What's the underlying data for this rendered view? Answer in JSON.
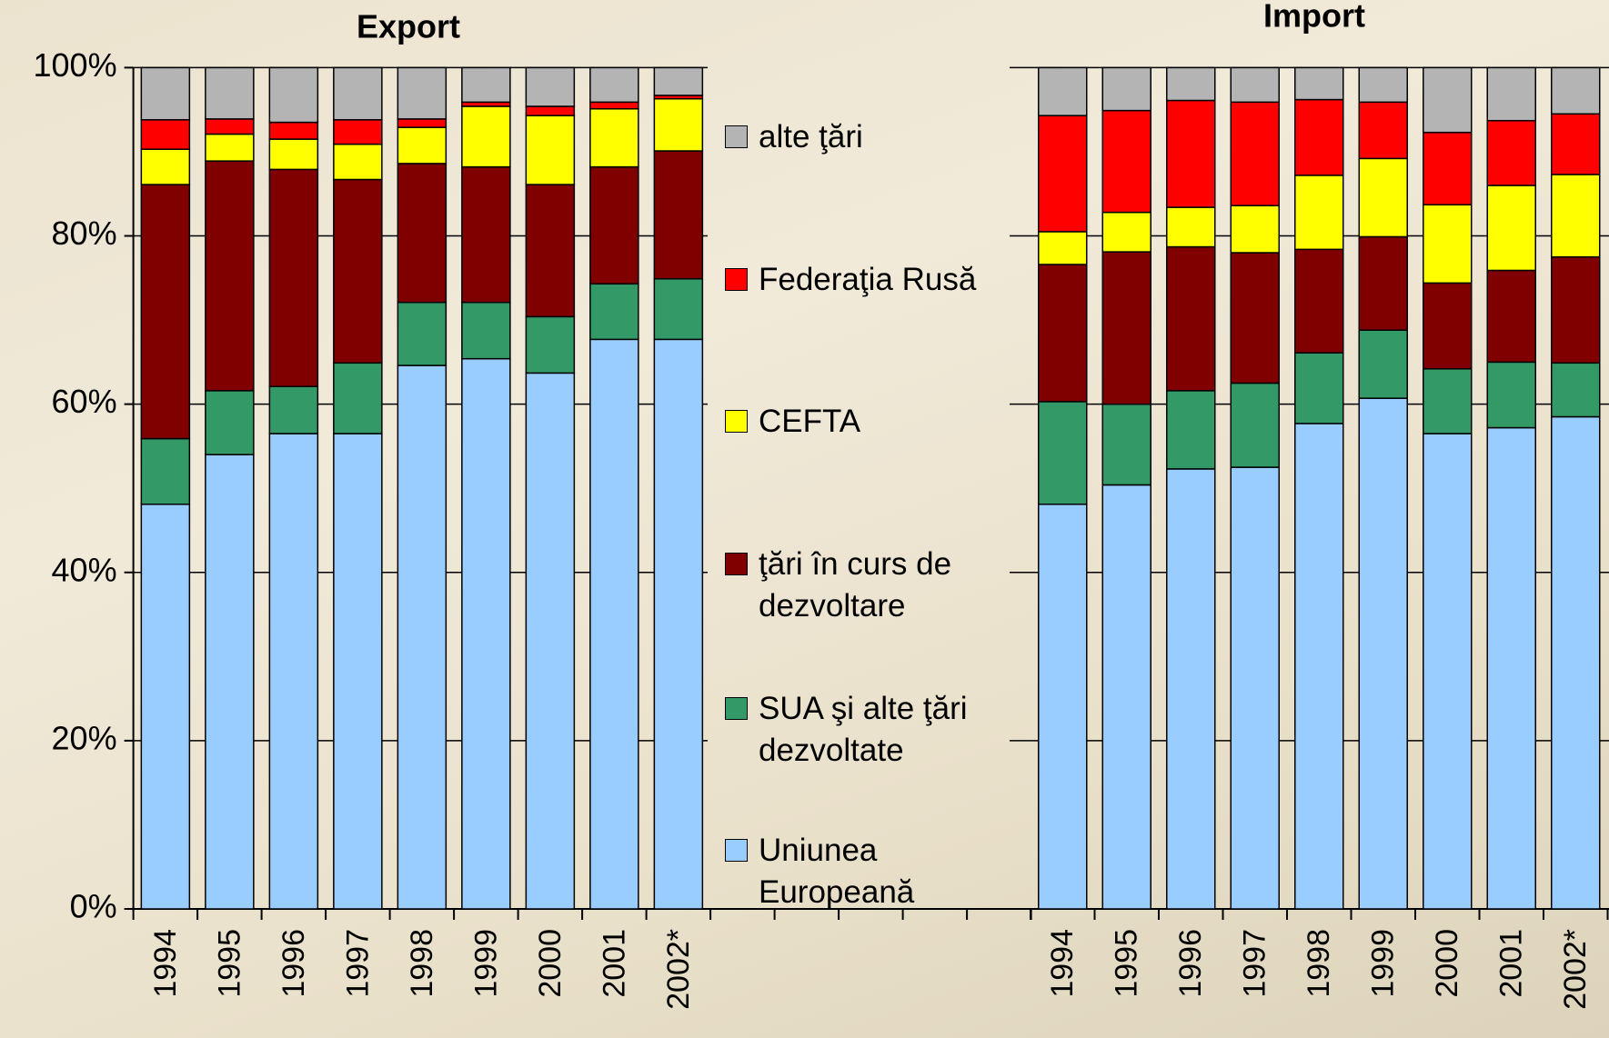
{
  "chart_data": [
    {
      "type": "bar",
      "stacked": true,
      "title": "Export",
      "categories": [
        "1994",
        "1995",
        "1996",
        "1997",
        "1998",
        "1999",
        "2000",
        "2001",
        "2002*"
      ],
      "ylim": [
        0,
        100
      ],
      "yticks": [
        {
          "value": 0,
          "label": "0%"
        },
        {
          "value": 20,
          "label": "20%"
        },
        {
          "value": 40,
          "label": "40%"
        },
        {
          "value": 60,
          "label": "60%"
        },
        {
          "value": 80,
          "label": "80%"
        },
        {
          "value": 100,
          "label": "100%"
        }
      ],
      "grid": true,
      "series": [
        {
          "name": "Uniunea Europeană",
          "color": "#99ccff",
          "values": [
            48.1,
            54.0,
            56.5,
            56.5,
            64.6,
            65.4,
            63.7,
            67.7,
            67.7
          ]
        },
        {
          "name": "SUA şi alte ţări dezvoltate",
          "color": "#339966",
          "values": [
            7.8,
            7.6,
            5.6,
            8.4,
            7.5,
            6.7,
            6.7,
            6.6,
            7.2
          ]
        },
        {
          "name": "ţări în curs de dezvoltare",
          "color": "#800000",
          "values": [
            30.2,
            27.3,
            25.8,
            21.8,
            16.5,
            16.1,
            15.7,
            13.9,
            15.2
          ]
        },
        {
          "name": "CEFTA",
          "color": "#ffff00",
          "values": [
            4.2,
            3.2,
            3.6,
            4.2,
            4.3,
            7.2,
            8.2,
            6.9,
            6.2
          ]
        },
        {
          "name": "Federaţia Rusă",
          "color": "#ff0000",
          "values": [
            3.5,
            1.8,
            2.0,
            2.9,
            1.0,
            0.5,
            1.1,
            0.8,
            0.4
          ]
        },
        {
          "name": "alte ţări",
          "color": "#b4b4b4",
          "values": [
            6.2,
            6.1,
            6.5,
            6.2,
            6.1,
            4.1,
            4.6,
            4.1,
            3.3
          ]
        }
      ]
    },
    {
      "type": "bar",
      "stacked": true,
      "title": "Import",
      "categories": [
        "1994",
        "1995",
        "1996",
        "1997",
        "1998",
        "1999",
        "2000",
        "2001",
        "2002*"
      ],
      "ylim": [
        0,
        100
      ],
      "yticks": [
        0,
        20,
        40,
        60,
        80,
        100
      ],
      "grid": true,
      "series": [
        {
          "color": "#99ccff",
          "values": [
            48.1,
            50.4,
            52.3,
            52.5,
            57.7,
            60.7,
            56.5,
            57.2,
            58.5
          ]
        },
        {
          "color": "#339966",
          "values": [
            12.2,
            9.6,
            9.3,
            10.0,
            8.4,
            8.1,
            7.7,
            7.8,
            6.4
          ]
        },
        {
          "color": "#800000",
          "values": [
            16.3,
            18.1,
            17.1,
            15.5,
            12.3,
            11.1,
            10.2,
            10.9,
            12.6
          ]
        },
        {
          "color": "#ffff00",
          "values": [
            3.9,
            4.7,
            4.7,
            5.6,
            8.8,
            9.3,
            9.3,
            10.1,
            9.8
          ]
        },
        {
          "color": "#ff0000",
          "values": [
            13.8,
            12.1,
            12.7,
            12.3,
            9.0,
            6.7,
            8.6,
            7.7,
            7.2
          ]
        },
        {
          "color": "#b4b4b4",
          "values": [
            5.7,
            5.1,
            3.9,
            4.1,
            3.8,
            4.1,
            7.7,
            6.3,
            5.5
          ]
        }
      ]
    }
  ]
}
